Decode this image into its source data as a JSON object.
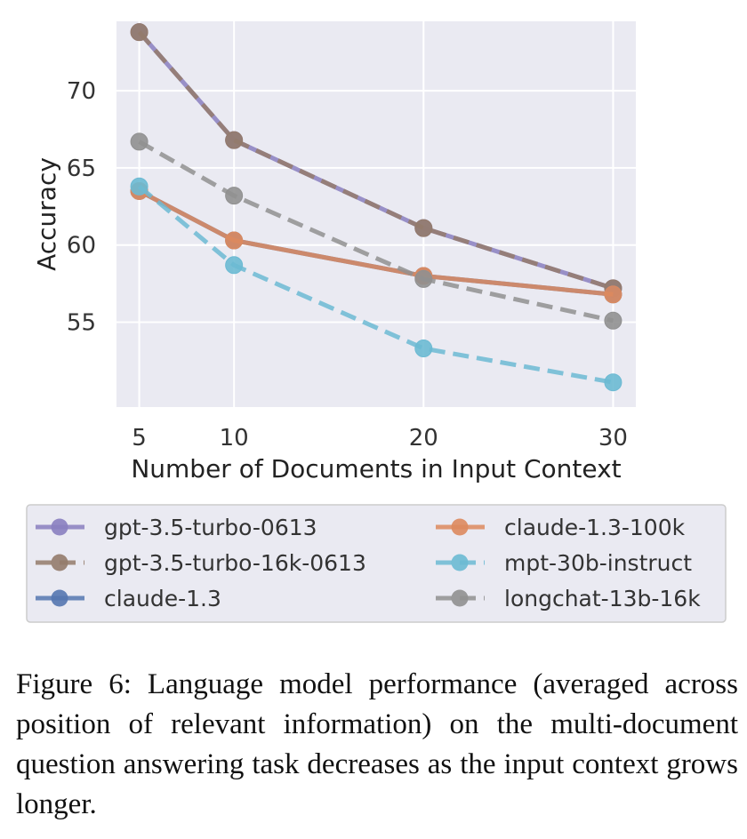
{
  "chart_data": {
    "type": "line",
    "title": "",
    "xlabel": "Number of Documents in Input Context",
    "ylabel": "Accuracy",
    "x": [
      5,
      10,
      20,
      30
    ],
    "x_ticks": [
      "5",
      "10",
      "20",
      "30"
    ],
    "y_ticks": [
      "55",
      "60",
      "65",
      "70"
    ],
    "y_tick_values": [
      55,
      60,
      65,
      70
    ],
    "xlim": [
      3.8,
      31.2
    ],
    "ylim": [
      49.5,
      74.5
    ],
    "grid": true,
    "legend_position": "bottom",
    "series": [
      {
        "name": "gpt-3.5-turbo-0613",
        "color": "#8a7fc0",
        "dashed": false,
        "values": [
          73.8,
          66.8,
          61.1,
          57.2
        ]
      },
      {
        "name": "gpt-3.5-turbo-16k-0613",
        "color": "#947b6b",
        "dashed": true,
        "values": [
          73.8,
          66.8,
          61.1,
          57.2
        ]
      },
      {
        "name": "claude-1.3",
        "color": "#5577b0",
        "dashed": false,
        "values": [
          63.5,
          60.3,
          58.0,
          56.8
        ]
      },
      {
        "name": "claude-1.3-100k",
        "color": "#dd8a5e",
        "dashed": false,
        "values": [
          63.5,
          60.3,
          58.0,
          56.8
        ]
      },
      {
        "name": "mpt-30b-instruct",
        "color": "#6cbad3",
        "dashed": true,
        "values": [
          63.8,
          58.7,
          53.3,
          51.1
        ]
      },
      {
        "name": "longchat-13b-16k",
        "color": "#909090",
        "dashed": true,
        "values": [
          66.7,
          63.2,
          57.8,
          55.1
        ]
      }
    ]
  },
  "caption": "Figure 6:  Language model performance (averaged across position of relevant information) on the multi-document question answering task decreases as the input context grows longer."
}
